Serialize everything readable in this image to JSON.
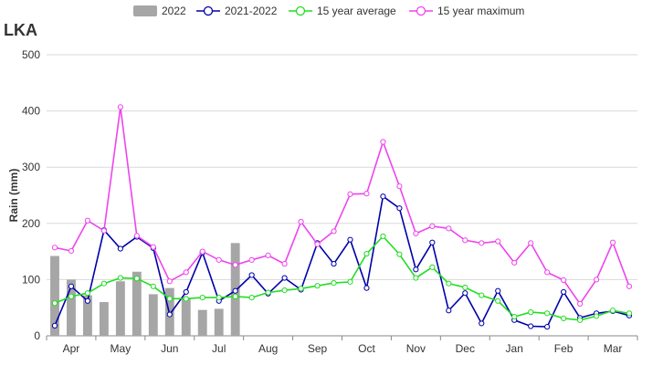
{
  "chart_data": {
    "type": "bar+line",
    "title": "LKA",
    "ylabel": "Rain (mm)",
    "ylim": [
      0,
      500
    ],
    "y_ticks": [
      0,
      100,
      200,
      300,
      400,
      500
    ],
    "month_labels": [
      "Apr",
      "May",
      "Jun",
      "Jul",
      "Aug",
      "Sep",
      "Oct",
      "Nov",
      "Dec",
      "Jan",
      "Feb",
      "Mar"
    ],
    "grid": "horizontal",
    "legend_position": "top",
    "bar_series": {
      "name": "2022",
      "color": "#a6a6a6",
      "values": [
        142,
        100,
        72,
        60,
        97,
        114,
        74,
        85,
        67,
        46,
        48,
        165
      ]
    },
    "line_series": [
      {
        "name": "2021-2022",
        "color": "#0000aa",
        "values": [
          18,
          88,
          62,
          188,
          155,
          176,
          156,
          38,
          78,
          148,
          62,
          80,
          108,
          75,
          103,
          82,
          165,
          128,
          171,
          85,
          248,
          227,
          118,
          166,
          45,
          76,
          22,
          80,
          28,
          17,
          16,
          78,
          32,
          40,
          44,
          36
        ]
      },
      {
        "name": "15 year average",
        "color": "#22dd22",
        "values": [
          58,
          70,
          76,
          93,
          103,
          102,
          88,
          66,
          66,
          68,
          68,
          70,
          68,
          77,
          81,
          84,
          89,
          94,
          96,
          146,
          177,
          145,
          103,
          122,
          93,
          86,
          72,
          62,
          34,
          42,
          40,
          31,
          28,
          35,
          45,
          40
        ]
      },
      {
        "name": "15 year maximum",
        "color": "#ee44ee",
        "values": [
          157,
          151,
          205,
          187,
          407,
          178,
          158,
          97,
          113,
          150,
          135,
          126,
          135,
          143,
          128,
          203,
          163,
          186,
          252,
          253,
          345,
          266,
          182,
          195,
          191,
          170,
          165,
          168,
          130,
          165,
          113,
          99,
          57,
          100,
          166,
          88
        ]
      }
    ]
  }
}
